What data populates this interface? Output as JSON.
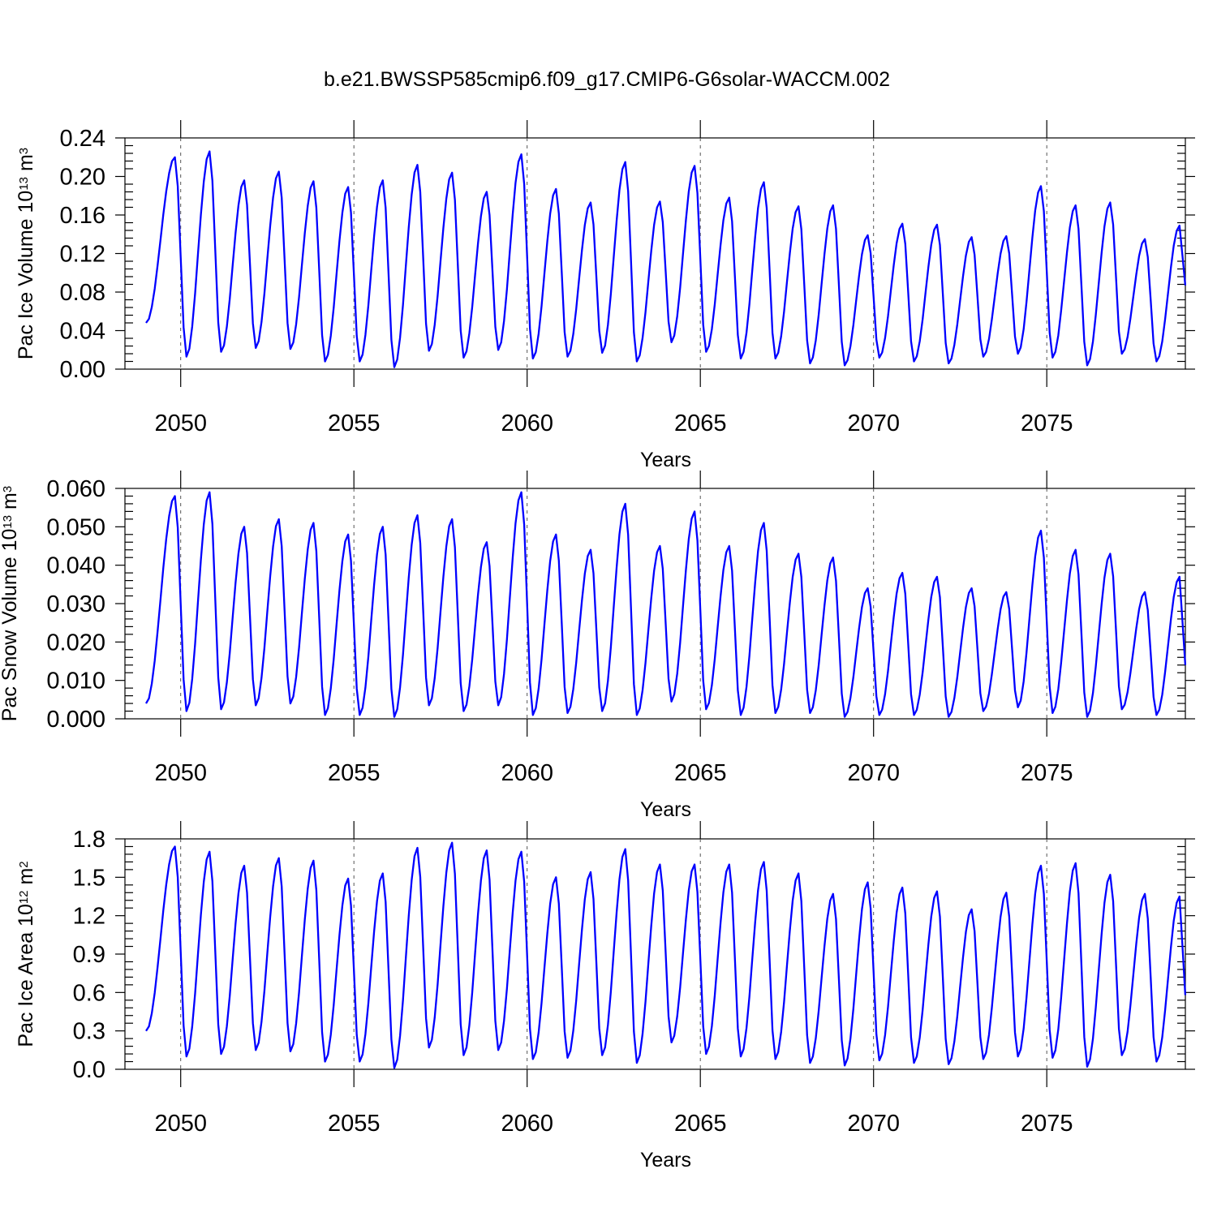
{
  "title": "b.e21.BWSSP585cmip6.f09_g17.CMIP6-G6solar-WACCM.002",
  "chart_data": [
    {
      "type": "line",
      "ylabel": "Pac Ice Volume 10",
      "ylabel_exp": "13",
      "ylabel_unit": " m",
      "ylabel_unit_exp": "3",
      "xlabel": "Years",
      "xlim": [
        2049,
        2079
      ],
      "ylim": [
        0,
        0.24
      ],
      "yticks": [
        0,
        0.04,
        0.08,
        0.12,
        0.16,
        0.2,
        0.24
      ],
      "yticklabels": [
        "0.00",
        "0.04",
        "0.08",
        "0.12",
        "0.16",
        "0.20",
        "0.24"
      ],
      "xticks": [
        2050,
        2055,
        2060,
        2065,
        2070,
        2075
      ],
      "xticklabels": [
        "2050",
        "2055",
        "2060",
        "2065",
        "2070",
        "2075"
      ],
      "vlines": [
        2050,
        2055,
        2060,
        2065,
        2070,
        2075
      ],
      "series": [
        {
          "color": "#0000ff",
          "x_start": 2049,
          "x_step": 0.08333,
          "peaks": [
            0.22,
            0.226,
            0.196,
            0.205,
            0.195,
            0.189,
            0.196,
            0.212,
            0.204,
            0.184,
            0.223,
            0.187,
            0.173,
            0.215,
            0.174,
            0.211,
            0.178,
            0.194,
            0.169,
            0.17,
            0.139,
            0.151,
            0.15,
            0.137,
            0.138,
            0.19,
            0.17,
            0.173,
            0.135,
            0.149
          ],
          "troughs": [
            0.013,
            0.018,
            0.022,
            0.021,
            0.008,
            0.008,
            0.002,
            0.019,
            0.012,
            0.02,
            0.011,
            0.013,
            0.017,
            0.008,
            0.028,
            0.018,
            0.011,
            0.011,
            0.006,
            0.004,
            0.012,
            0.008,
            0.006,
            0.013,
            0.016,
            0.012,
            0.004,
            0.016,
            0.008
          ],
          "start_value": 0.048,
          "end_value": 0.087
        }
      ]
    },
    {
      "type": "line",
      "ylabel": "Pac Snow Volume 10",
      "ylabel_exp": "13",
      "ylabel_unit": " m",
      "ylabel_unit_exp": "3",
      "xlabel": "Years",
      "xlim": [
        2049,
        2079
      ],
      "ylim": [
        0,
        0.06
      ],
      "yticks": [
        0,
        0.01,
        0.02,
        0.03,
        0.04,
        0.05,
        0.06
      ],
      "yticklabels": [
        "0.000",
        "0.010",
        "0.020",
        "0.030",
        "0.040",
        "0.050",
        "0.060"
      ],
      "xticks": [
        2050,
        2055,
        2060,
        2065,
        2070,
        2075
      ],
      "xticklabels": [
        "2050",
        "2055",
        "2060",
        "2065",
        "2070",
        "2075"
      ],
      "vlines": [
        2050,
        2055,
        2060,
        2065,
        2070,
        2075
      ],
      "series": [
        {
          "color": "#0000ff",
          "x_start": 2049,
          "x_step": 0.08333,
          "peaks": [
            0.058,
            0.059,
            0.05,
            0.052,
            0.051,
            0.048,
            0.05,
            0.053,
            0.052,
            0.046,
            0.059,
            0.048,
            0.044,
            0.056,
            0.045,
            0.054,
            0.045,
            0.051,
            0.043,
            0.042,
            0.034,
            0.038,
            0.037,
            0.034,
            0.033,
            0.049,
            0.044,
            0.043,
            0.033,
            0.037
          ],
          "troughs": [
            0.002,
            0.0025,
            0.0035,
            0.004,
            0.001,
            0.001,
            0.0005,
            0.0035,
            0.002,
            0.0035,
            0.001,
            0.0015,
            0.002,
            0.001,
            0.0045,
            0.0025,
            0.001,
            0.0015,
            0.0015,
            0.0005,
            0.001,
            0.001,
            0.0005,
            0.002,
            0.003,
            0.0015,
            0.0005,
            0.0025,
            0.001
          ],
          "start_value": 0.004,
          "end_value": 0.014
        }
      ]
    },
    {
      "type": "line",
      "ylabel": "Pac Ice Area 10",
      "ylabel_exp": "12",
      "ylabel_unit": " m",
      "ylabel_unit_exp": "2",
      "xlabel": "Years",
      "xlim": [
        2049,
        2079
      ],
      "ylim": [
        0,
        1.8
      ],
      "yticks": [
        0,
        0.3,
        0.6,
        0.9,
        1.2,
        1.5,
        1.8
      ],
      "yticklabels": [
        "0.0",
        "0.3",
        "0.6",
        "0.9",
        "1.2",
        "1.5",
        "1.8"
      ],
      "xticks": [
        2050,
        2055,
        2060,
        2065,
        2070,
        2075
      ],
      "xticklabels": [
        "2050",
        "2055",
        "2060",
        "2065",
        "2070",
        "2075"
      ],
      "vlines": [
        2050,
        2055,
        2060,
        2065,
        2070,
        2075
      ],
      "series": [
        {
          "color": "#0000ff",
          "x_start": 2049,
          "x_step": 0.08333,
          "peaks": [
            1.74,
            1.7,
            1.59,
            1.65,
            1.63,
            1.49,
            1.53,
            1.73,
            1.77,
            1.71,
            1.7,
            1.5,
            1.54,
            1.72,
            1.6,
            1.6,
            1.6,
            1.62,
            1.53,
            1.37,
            1.46,
            1.42,
            1.39,
            1.25,
            1.38,
            1.59,
            1.61,
            1.52,
            1.37,
            1.35
          ],
          "troughs": [
            0.1,
            0.12,
            0.15,
            0.14,
            0.06,
            0.06,
            0.01,
            0.17,
            0.11,
            0.15,
            0.08,
            0.09,
            0.11,
            0.05,
            0.21,
            0.12,
            0.1,
            0.08,
            0.05,
            0.03,
            0.07,
            0.05,
            0.04,
            0.08,
            0.1,
            0.09,
            0.02,
            0.11,
            0.06
          ],
          "start_value": 0.3,
          "end_value": 0.58
        }
      ]
    }
  ]
}
